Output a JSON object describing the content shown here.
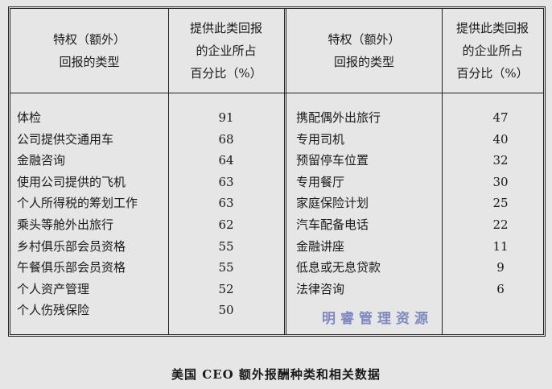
{
  "header": {
    "type_label_1": "特权（额外）",
    "type_label_2": "回报的类型",
    "pct_label_1": "提供此类回报",
    "pct_label_2": "的企业所占",
    "pct_label_3": "百分比（%）"
  },
  "left": [
    {
      "name": "体检",
      "pct": "91"
    },
    {
      "name": "公司提供交通用车",
      "pct": "68"
    },
    {
      "name": "金融咨询",
      "pct": "64"
    },
    {
      "name": "使用公司提供的飞机",
      "pct": "63"
    },
    {
      "name": "个人所得税的筹划工作",
      "pct": "63"
    },
    {
      "name": "乘头等舱外出旅行",
      "pct": "62"
    },
    {
      "name": "乡村俱乐部会员资格",
      "pct": "55"
    },
    {
      "name": "午餐俱乐部会员资格",
      "pct": "55"
    },
    {
      "name": "个人资产管理",
      "pct": "52"
    },
    {
      "name": "个人伤残保险",
      "pct": "50"
    }
  ],
  "right": [
    {
      "name": "携配偶外出旅行",
      "pct": "47"
    },
    {
      "name": "专用司机",
      "pct": "40"
    },
    {
      "name": "预留停车位置",
      "pct": "32"
    },
    {
      "name": "专用餐厅",
      "pct": "30"
    },
    {
      "name": "家庭保险计划",
      "pct": "25"
    },
    {
      "name": "汽车配备电话",
      "pct": "22"
    },
    {
      "name": "金融讲座",
      "pct": "11"
    },
    {
      "name": "低息或无息贷款",
      "pct": "9"
    },
    {
      "name": "法律咨询",
      "pct": "6"
    }
  ],
  "caption": "美国 CEO 额外报酬种类和相关数据",
  "watermark": "明睿管理资源"
}
